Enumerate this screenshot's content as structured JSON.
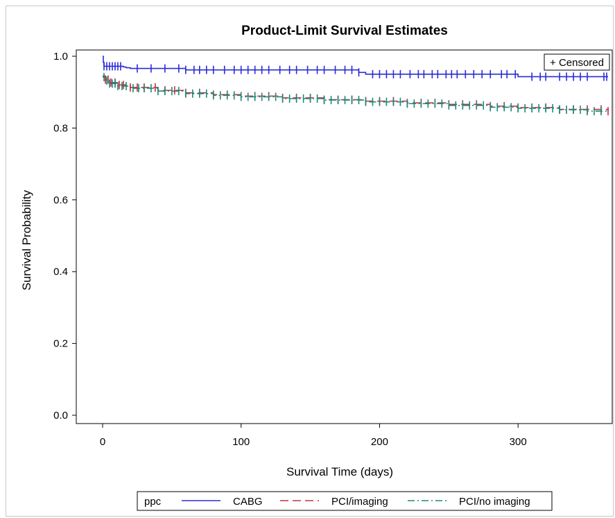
{
  "chart_data": {
    "type": "line",
    "title": "Product-Limit Survival Estimates",
    "xlabel": "Survival Time (days)",
    "ylabel": "Survival Probability",
    "xlim": [
      0,
      365
    ],
    "ylim": [
      0,
      1.0
    ],
    "xticks": [
      0,
      100,
      200,
      300
    ],
    "yticks": [
      0.0,
      0.2,
      0.4,
      0.6,
      0.8,
      1.0
    ],
    "xtick_labels": [
      "0",
      "100",
      "200",
      "300"
    ],
    "ytick_labels": [
      "0.0",
      "0.2",
      "0.4",
      "0.6",
      "0.8",
      "1.0"
    ],
    "grid": false,
    "censored_legend": "+ Censored",
    "legend": {
      "placement": "bottom",
      "title": "ppc"
    },
    "series": [
      {
        "name": "CABG",
        "color": "#2b2bd6",
        "dash": "solid",
        "x": [
          0,
          0.5,
          1,
          14,
          15,
          17,
          20,
          35,
          60,
          120,
          180,
          185,
          190,
          250,
          296,
          300,
          365
        ],
        "y": [
          1.0,
          0.983,
          0.972,
          0.972,
          0.97,
          0.968,
          0.966,
          0.966,
          0.962,
          0.962,
          0.962,
          0.955,
          0.95,
          0.95,
          0.95,
          0.943,
          0.943
        ]
      },
      {
        "name": "PCI/imaging",
        "color": "#c43040",
        "dash": "long-dash",
        "x": [
          0,
          2,
          5,
          10,
          20,
          40,
          60,
          80,
          100,
          130,
          160,
          190,
          220,
          250,
          280,
          300,
          330,
          365
        ],
        "y": [
          0.945,
          0.935,
          0.927,
          0.92,
          0.913,
          0.905,
          0.898,
          0.893,
          0.889,
          0.884,
          0.879,
          0.875,
          0.87,
          0.866,
          0.861,
          0.857,
          0.852,
          0.847
        ]
      },
      {
        "name": "PCI/no imaging",
        "color": "#1a8a7a",
        "dash": "dash-dot",
        "x": [
          0,
          2,
          5,
          10,
          20,
          40,
          60,
          80,
          100,
          130,
          160,
          190,
          220,
          250,
          280,
          300,
          330,
          350,
          365
        ],
        "y": [
          0.942,
          0.932,
          0.924,
          0.917,
          0.911,
          0.903,
          0.896,
          0.891,
          0.887,
          0.882,
          0.878,
          0.873,
          0.868,
          0.863,
          0.858,
          0.855,
          0.851,
          0.847,
          0.845
        ]
      }
    ],
    "censored": [
      {
        "series": "CABG",
        "x": [
          1,
          3,
          5,
          7,
          9,
          11,
          13,
          25,
          35,
          45,
          55,
          60,
          66,
          70,
          75,
          80,
          88,
          95,
          100,
          105,
          110,
          115,
          120,
          128,
          135,
          140,
          148,
          155,
          160,
          168,
          175,
          180,
          185,
          195,
          200,
          205,
          210,
          215,
          222,
          228,
          232,
          238,
          242,
          248,
          252,
          256,
          262,
          268,
          274,
          280,
          288,
          292,
          298,
          310,
          316,
          320,
          330,
          335,
          340,
          345,
          350,
          362,
          364
        ]
      },
      {
        "series": "PCI/imaging",
        "x": [
          2,
          4,
          6,
          9,
          12,
          15,
          20,
          25,
          30,
          38,
          45,
          52,
          60,
          70,
          80,
          90,
          100,
          110,
          120,
          130,
          140,
          150,
          160,
          170,
          180,
          190,
          200,
          210,
          220,
          230,
          240,
          250,
          260,
          270,
          280,
          290,
          300,
          310,
          320,
          330,
          340,
          350,
          360,
          365
        ]
      },
      {
        "series": "PCI/no imaging",
        "x": [
          1,
          3,
          5,
          7,
          9,
          11,
          14,
          17,
          22,
          26,
          30,
          35,
          40,
          45,
          50,
          55,
          60,
          65,
          70,
          75,
          80,
          85,
          90,
          95,
          100,
          105,
          110,
          115,
          120,
          125,
          130,
          135,
          140,
          145,
          150,
          155,
          160,
          165,
          170,
          175,
          180,
          185,
          190,
          195,
          200,
          205,
          210,
          215,
          220,
          225,
          230,
          235,
          240,
          245,
          250,
          255,
          260,
          265,
          270,
          275,
          280,
          285,
          290,
          295,
          300,
          305,
          310,
          315,
          320,
          325,
          330,
          335,
          340,
          345,
          350,
          355,
          360
        ]
      }
    ]
  }
}
